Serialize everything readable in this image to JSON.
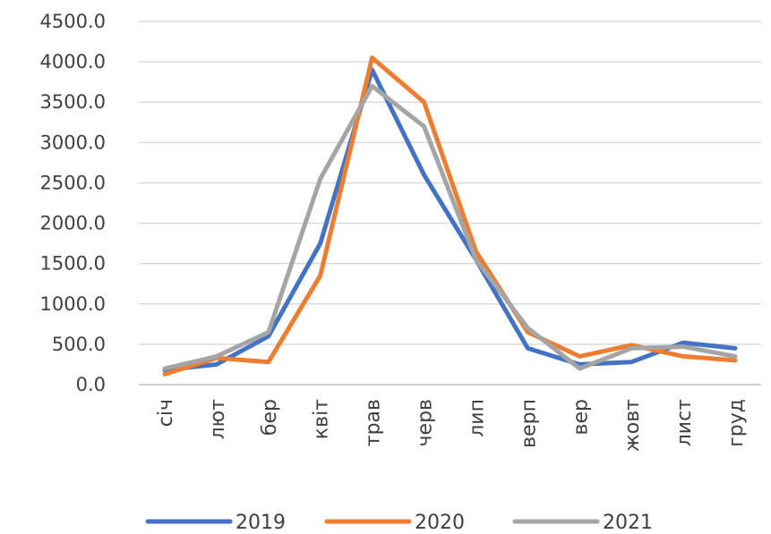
{
  "chart_data": {
    "type": "line",
    "title": "",
    "xlabel": "",
    "ylabel": "",
    "categories": [
      "січ",
      "лют",
      "бер",
      "квіт",
      "трав",
      "черв",
      "лип",
      "верп",
      "вер",
      "жовт",
      "лист",
      "груд"
    ],
    "y_ticks": [
      "0.0",
      "500.0",
      "1000.0",
      "1500.0",
      "2000.0",
      "2500.0",
      "3000.0",
      "3500.0",
      "4000.0",
      "4500.0"
    ],
    "ylim": [
      0,
      4500
    ],
    "grid": true,
    "legend_position": "bottom",
    "series": [
      {
        "name": "2019",
        "color": "#4472C4",
        "values": [
          180,
          250,
          600,
          1750,
          3900,
          2600,
          1550,
          450,
          250,
          280,
          520,
          450
        ]
      },
      {
        "name": "2020",
        "color": "#ED7D31",
        "values": [
          130,
          330,
          280,
          1350,
          4050,
          3500,
          1650,
          650,
          350,
          490,
          350,
          300
        ]
      },
      {
        "name": "2021",
        "color": "#A5A5A5",
        "values": [
          200,
          350,
          650,
          2550,
          3700,
          3200,
          1550,
          700,
          200,
          450,
          470,
          350
        ]
      }
    ]
  }
}
